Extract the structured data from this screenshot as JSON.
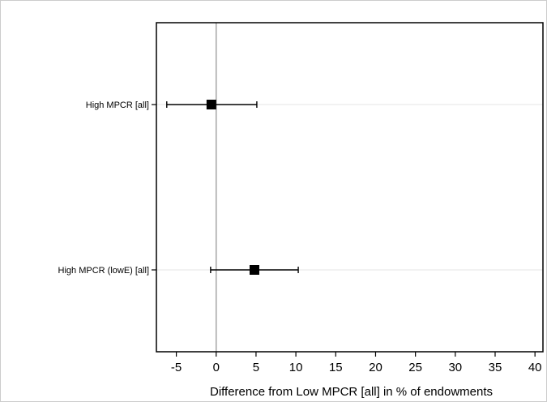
{
  "chart_data": {
    "type": "scatter",
    "title": "",
    "xlabel": "Difference from Low MPCR [all] in % of endowments",
    "ylabel": "",
    "xlim": [
      -7.5,
      41
    ],
    "xticks": [
      -5,
      0,
      5,
      10,
      15,
      20,
      25,
      30,
      35,
      40
    ],
    "categories": [
      "High MPCR [all]",
      "High MPCR (lowE) [all]"
    ],
    "series": [
      {
        "estimate": [
          -0.6,
          4.8
        ],
        "ci_low": [
          -6.2,
          -0.7
        ],
        "ci_high": [
          5.1,
          10.3
        ]
      }
    ],
    "reference_line_x": 0,
    "grid": false,
    "legend": "none",
    "colors": {
      "marker": "#000000",
      "reference_line": "#a6a6a6",
      "category_guide": "#e6e6e6",
      "frame": "#000000"
    }
  }
}
